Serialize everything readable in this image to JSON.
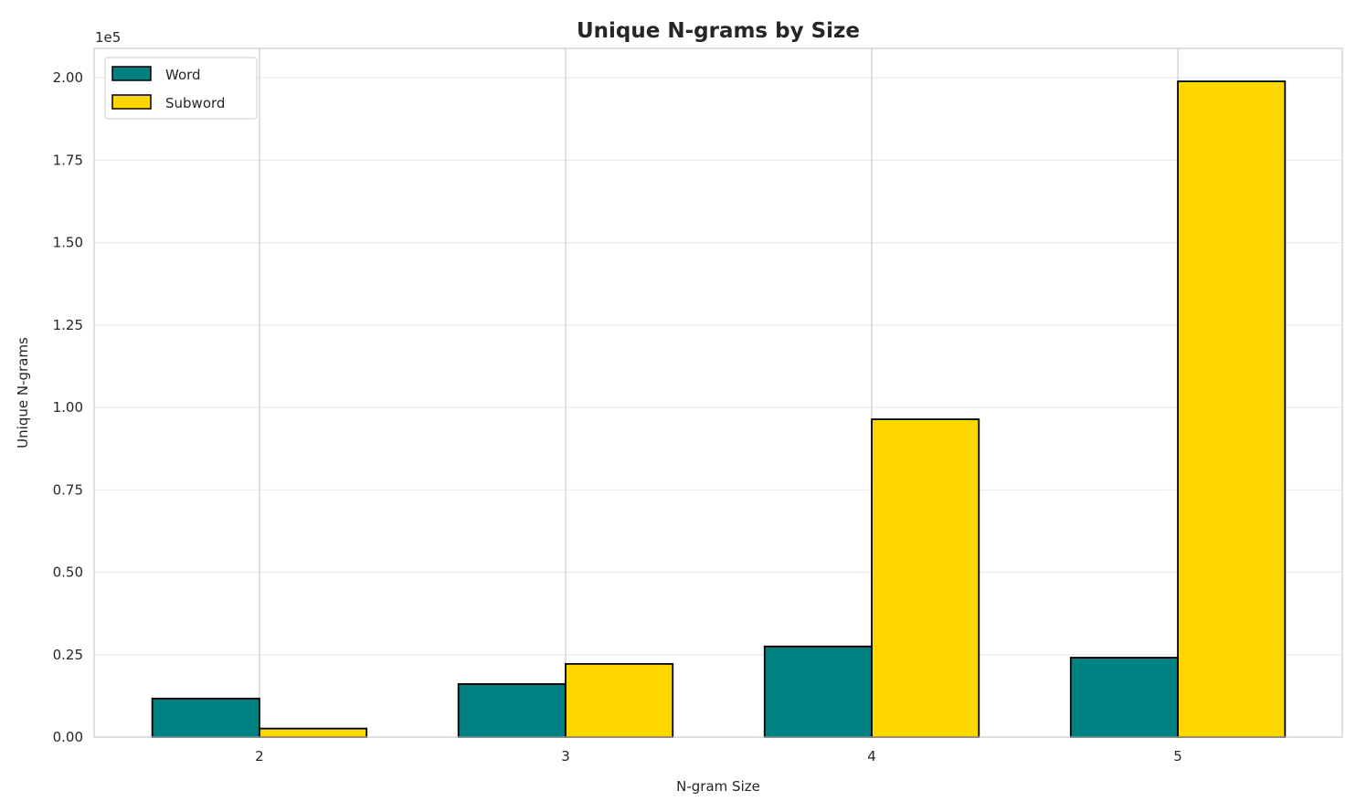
{
  "chart_data": {
    "type": "bar",
    "title": "Unique N-grams by Size",
    "xlabel": "N-gram Size",
    "ylabel": "Unique N-grams",
    "y_offset_label": "1e5",
    "categories": [
      "2",
      "3",
      "4",
      "5"
    ],
    "series": [
      {
        "name": "Word",
        "color": "#008080",
        "values": [
          11700,
          16100,
          27500,
          24100
        ]
      },
      {
        "name": "Subword",
        "color": "#FFD700",
        "values": [
          2600,
          22200,
          96400,
          198900
        ]
      }
    ],
    "yticks": [
      0,
      25000,
      50000,
      75000,
      100000,
      125000,
      150000,
      175000,
      200000
    ],
    "ytick_labels": [
      "0.00",
      "0.25",
      "0.50",
      "0.75",
      "1.00",
      "1.25",
      "1.50",
      "1.75",
      "2.00"
    ],
    "ylim": [
      0,
      208900
    ],
    "grid": true,
    "legend": "top-left"
  }
}
